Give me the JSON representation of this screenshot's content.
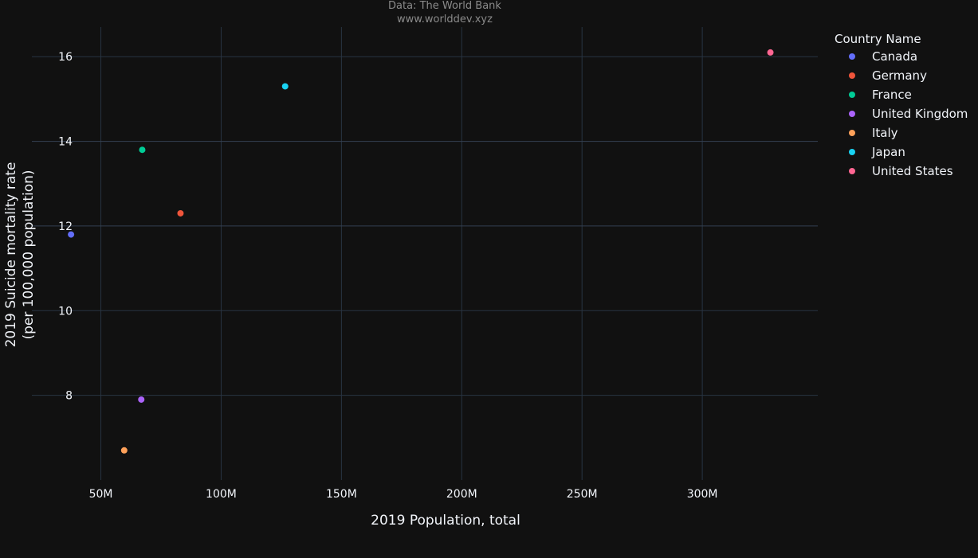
{
  "chart_data": {
    "type": "scatter",
    "annotation": [
      "Data: The World Bank",
      "www.worlddev.xyz"
    ],
    "xlabel": "2019 Population, total",
    "ylabel": [
      "2019 Suicide mortality rate",
      "(per 100,000 population)"
    ],
    "x_ticks": [
      {
        "value": 50000000,
        "label": "50M"
      },
      {
        "value": 100000000,
        "label": "100M"
      },
      {
        "value": 150000000,
        "label": "150M"
      },
      {
        "value": 200000000,
        "label": "200M"
      },
      {
        "value": 250000000,
        "label": "250M"
      },
      {
        "value": 300000000,
        "label": "300M"
      }
    ],
    "y_ticks": [
      {
        "value": 8,
        "label": "8"
      },
      {
        "value": 10,
        "label": "10"
      },
      {
        "value": 12,
        "label": "12"
      },
      {
        "value": 14,
        "label": "14"
      },
      {
        "value": 16,
        "label": "16"
      }
    ],
    "xlim": [
      20000000,
      348000000
    ],
    "ylim": [
      6.0,
      16.7
    ],
    "grid": true,
    "legend": {
      "title": "Country Name",
      "position": "right"
    },
    "series": [
      {
        "name": "Canada",
        "color": "#636efa",
        "x": [
          37600000
        ],
        "y": [
          11.8
        ]
      },
      {
        "name": "Germany",
        "color": "#ef553b",
        "x": [
          83100000
        ],
        "y": [
          12.3
        ]
      },
      {
        "name": "France",
        "color": "#00cc96",
        "x": [
          67200000
        ],
        "y": [
          13.8
        ]
      },
      {
        "name": "United Kingdom",
        "color": "#ab63fa",
        "x": [
          66800000
        ],
        "y": [
          7.9
        ]
      },
      {
        "name": "Italy",
        "color": "#ffa15a",
        "x": [
          59700000
        ],
        "y": [
          6.7
        ]
      },
      {
        "name": "Japan",
        "color": "#19d3f3",
        "x": [
          126600000
        ],
        "y": [
          15.3
        ]
      },
      {
        "name": "United States",
        "color": "#ff6692",
        "x": [
          328300000
        ],
        "y": [
          16.1
        ]
      }
    ]
  }
}
